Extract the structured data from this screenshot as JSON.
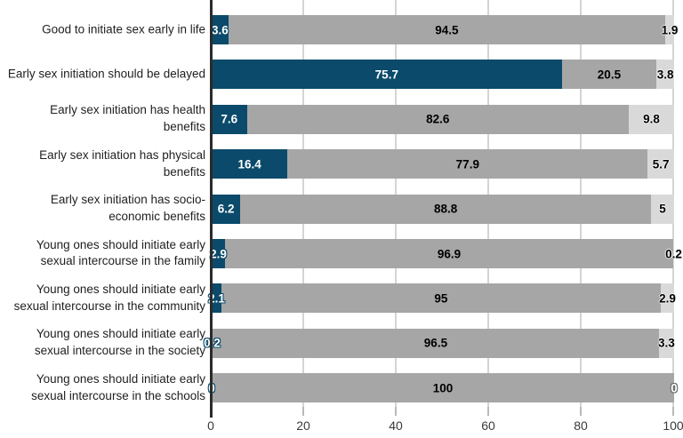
{
  "chart_data": {
    "type": "bar",
    "orientation": "horizontal",
    "stacked": true,
    "title": "",
    "xlabel": "",
    "ylabel": "",
    "legend": false,
    "grid": true,
    "categories": [
      "Good to initiate sex early in life",
      "Early sex initiation should be delayed",
      "Early sex initiation has health\nbenefits",
      "Early sex initiation has physical\nbenefits",
      "Early sex initiation has socio-\neconomic benefits",
      "Young ones should initiate early\nsexual intercourse in the family",
      "Young ones should initiate early\nsexual intercourse in the community",
      "Young ones should initiate early\nsexual intercourse in the society",
      "Young ones should initiate early\nsexual intercourse in the schools"
    ],
    "series": [
      {
        "name": "dark-blue-segment",
        "color": "#0b4a6b",
        "values": [
          3.6,
          75.7,
          7.6,
          16.4,
          6.2,
          2.9,
          2.1,
          0.2,
          0
        ]
      },
      {
        "name": "gray-segment",
        "color": "#a6a6a6",
        "values": [
          94.5,
          20.5,
          82.6,
          77.9,
          88.8,
          96.9,
          95,
          96.5,
          100
        ]
      },
      {
        "name": "light-gray-segment",
        "color": "#d9d9d9",
        "values": [
          1.9,
          3.8,
          9.8,
          5.7,
          5,
          0.2,
          2.9,
          3.3,
          0
        ]
      }
    ],
    "x_axis": {
      "min": 0,
      "max": 100,
      "ticks": [
        "0",
        "20",
        "40",
        "60",
        "80",
        "100"
      ]
    }
  },
  "colors": {
    "axis_line": "#2b2b2b",
    "gridline": "#d4d4d4",
    "label_text": "#1f1f1f",
    "tick_text": "#3a3a3a"
  }
}
